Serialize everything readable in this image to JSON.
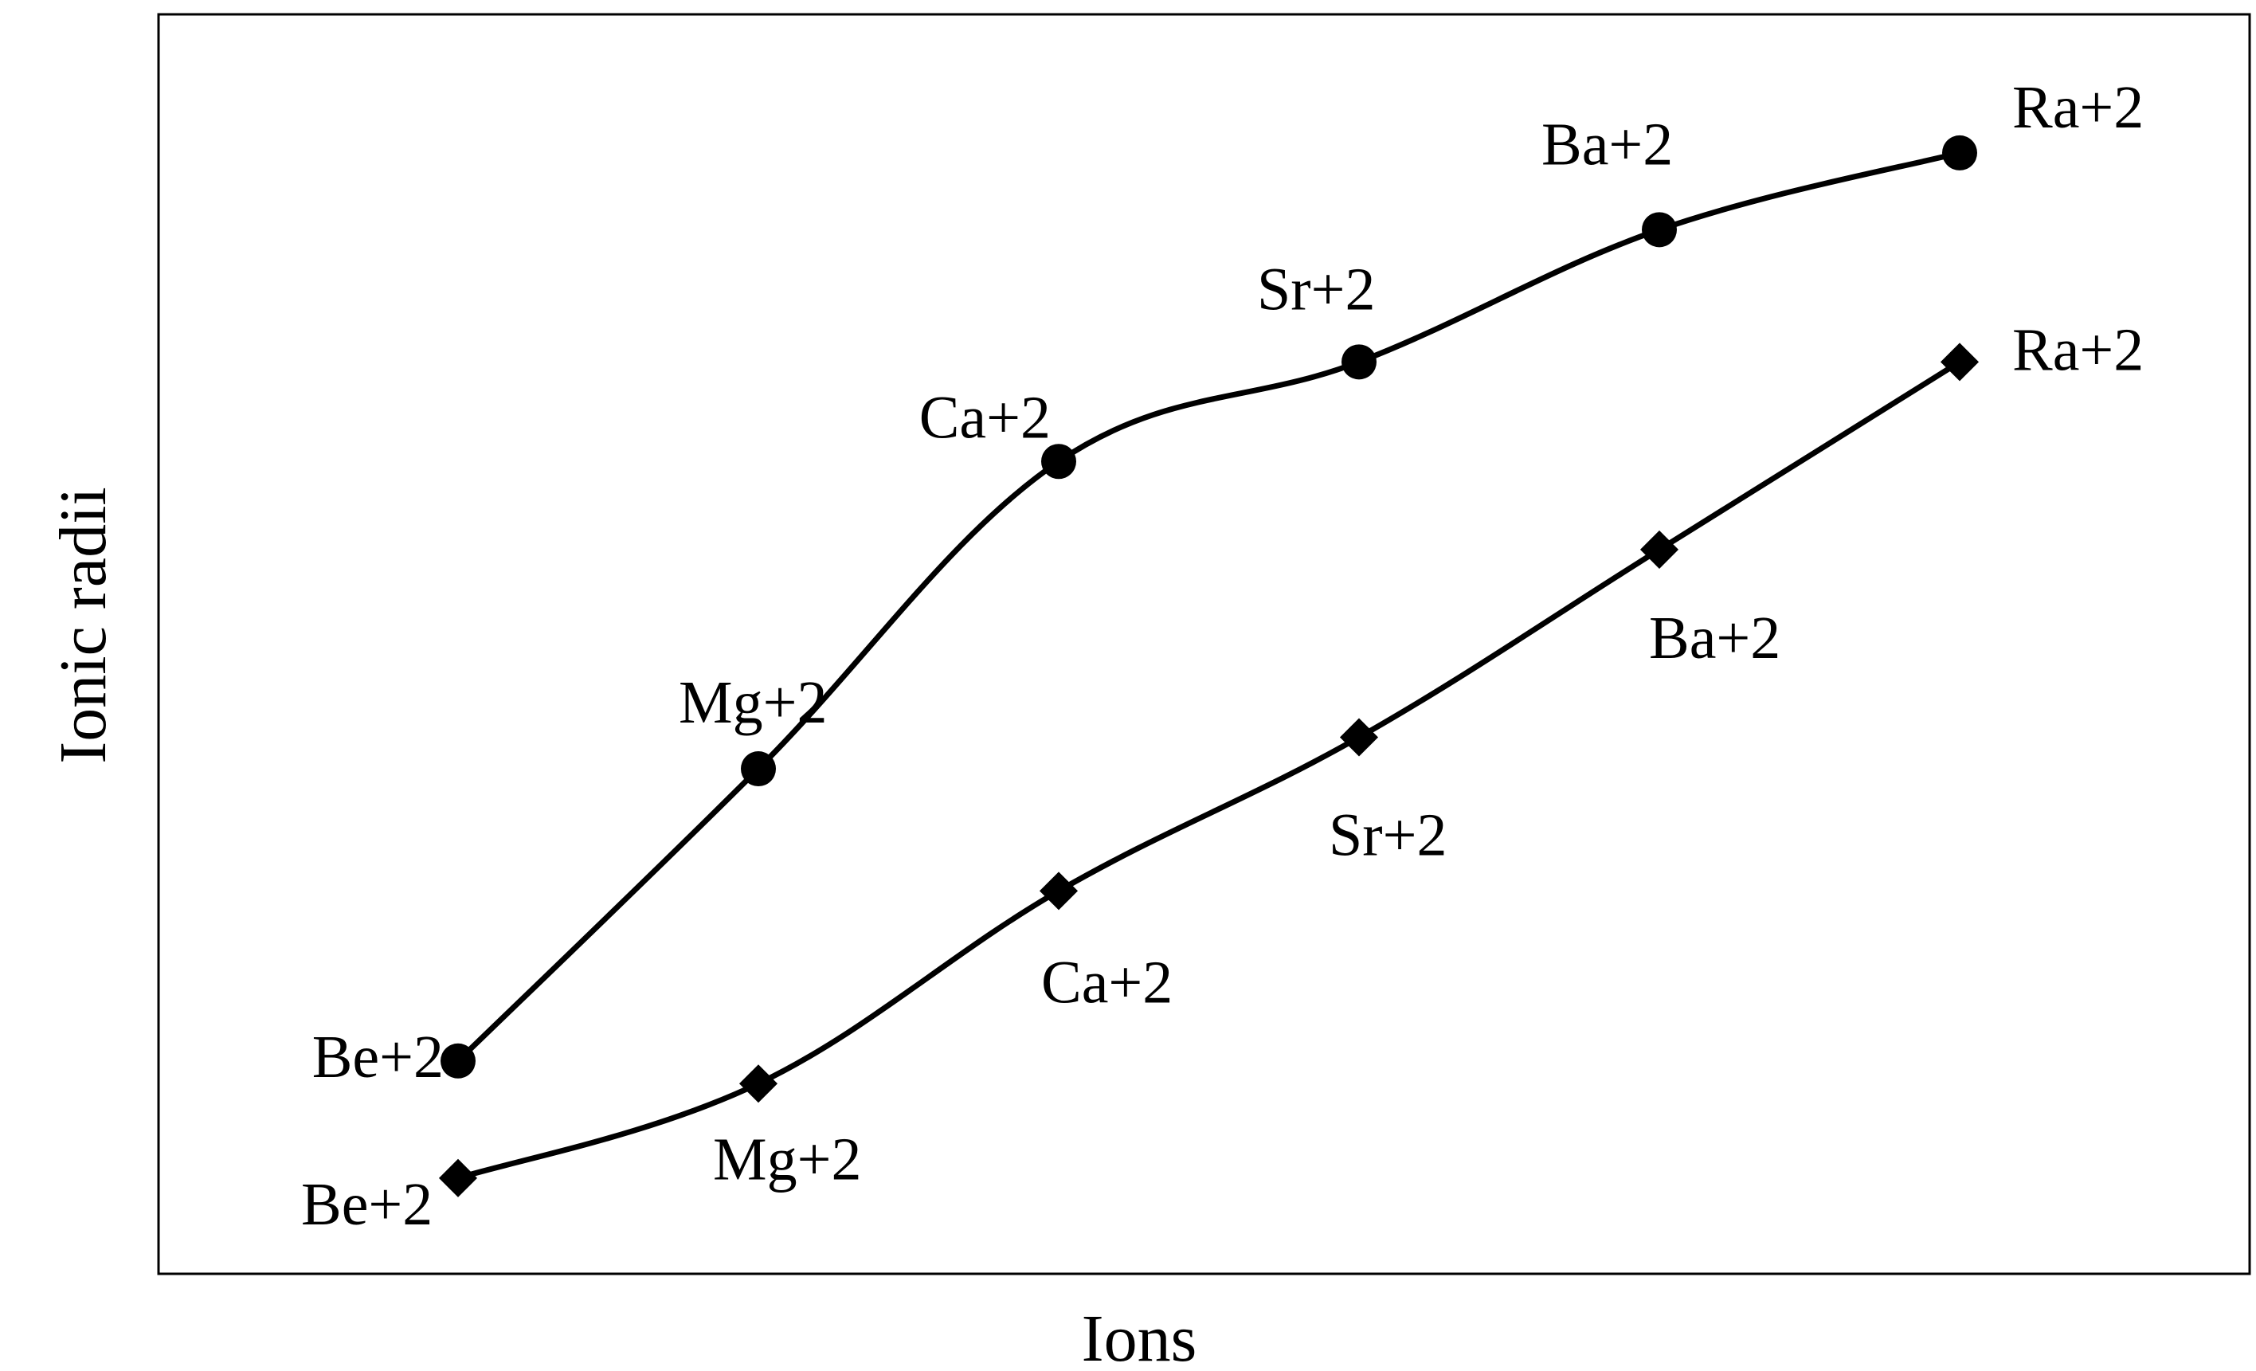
{
  "chart_data": {
    "type": "line",
    "title": "",
    "xlabel": "Ions",
    "ylabel": "Ionic radii",
    "categories": [
      "Be+2",
      "Mg+2",
      "Ca+2",
      "Sr+2",
      "Ba+2",
      "Ra+2"
    ],
    "ylim": [
      0,
      100
    ],
    "grid": false,
    "legend": "none",
    "series": [
      {
        "marker": "circle",
        "values": [
          16.9,
          40.1,
          64.5,
          72.4,
          82.9,
          89.0
        ],
        "labels": [
          "Be+2",
          "Mg+2",
          "Ca+2",
          "Sr+2",
          "Ba+2",
          "Ra+2"
        ]
      },
      {
        "marker": "diamond",
        "values": [
          7.6,
          15.1,
          30.4,
          42.6,
          57.5,
          72.4
        ],
        "labels": [
          "Be+2",
          "Mg+2",
          "Ca+2",
          "Sr+2",
          "Ba+2",
          "Ra+2"
        ]
      }
    ]
  }
}
